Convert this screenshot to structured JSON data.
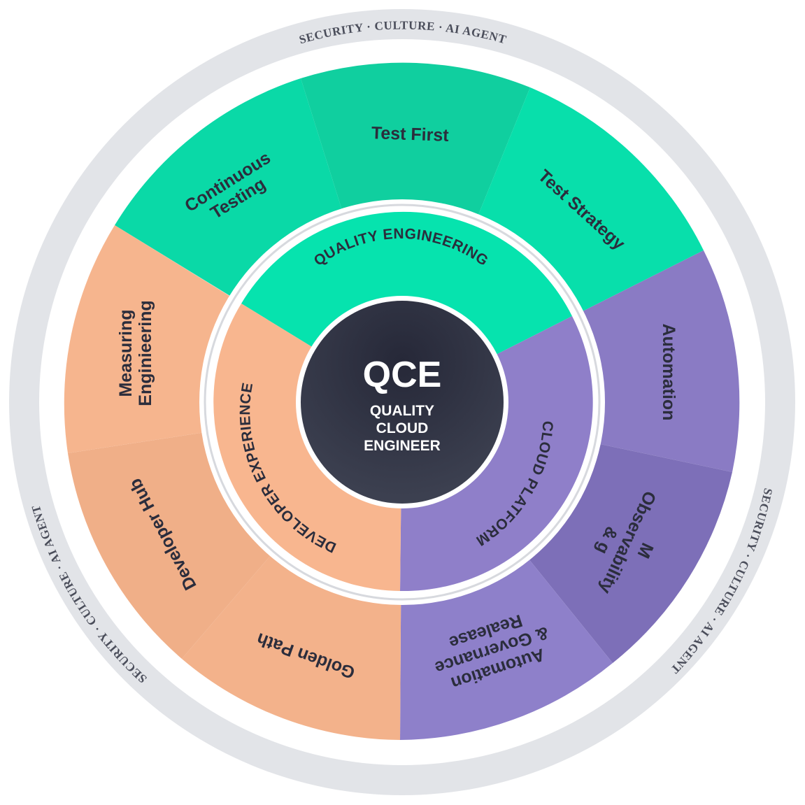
{
  "center": {
    "acronym": "QCE",
    "line1": "QUALITY",
    "line2": "CLOUD",
    "line3": "ENGINEER"
  },
  "pillars": [
    {
      "name": "QUALITY ENGINEERING",
      "color": "#06e3ae",
      "color_dark": "#0cc595"
    },
    {
      "name": "CLOUD PLATFORM",
      "color": "#8f7fc9",
      "color_dark": "#6a5fa0"
    },
    {
      "name": "DEVELOPER EXPERIENCE",
      "color": "#f8b68f",
      "color_dark": "#d29c7b"
    }
  ],
  "segments": {
    "continuous_testing": {
      "line1": "Continuous",
      "line2": "Testing"
    },
    "test_first": {
      "line1": "Test First"
    },
    "test_strategy": {
      "line1": "Test Strategy"
    },
    "automation": {
      "line1": "Automation"
    },
    "observability": {
      "line1": "M",
      "line2": "Observability",
      "line3": "& g"
    },
    "release": {
      "line1": "Automation",
      "line2": "& Governance",
      "line3": "Realease"
    },
    "golden_path": {
      "line1": "Golden Path"
    },
    "developer_hub": {
      "line1": "Developer Hub"
    },
    "measuring": {
      "line1": "Measuring",
      "line2": "Enginieering"
    }
  },
  "outer_ring": {
    "top": "SECURITY  ·  CULTURE  ·  AI AGENT",
    "right": "SECURITY  ·  CULTURE  ·  AI AGENT",
    "left": "SECURITY  ·  CULTURE  ·  AI AGENT",
    "color": "#e2e4e8"
  },
  "colors": {
    "center": "#2c2f3f",
    "divider": "#ffffff",
    "ring_line": "#d7d9de"
  }
}
